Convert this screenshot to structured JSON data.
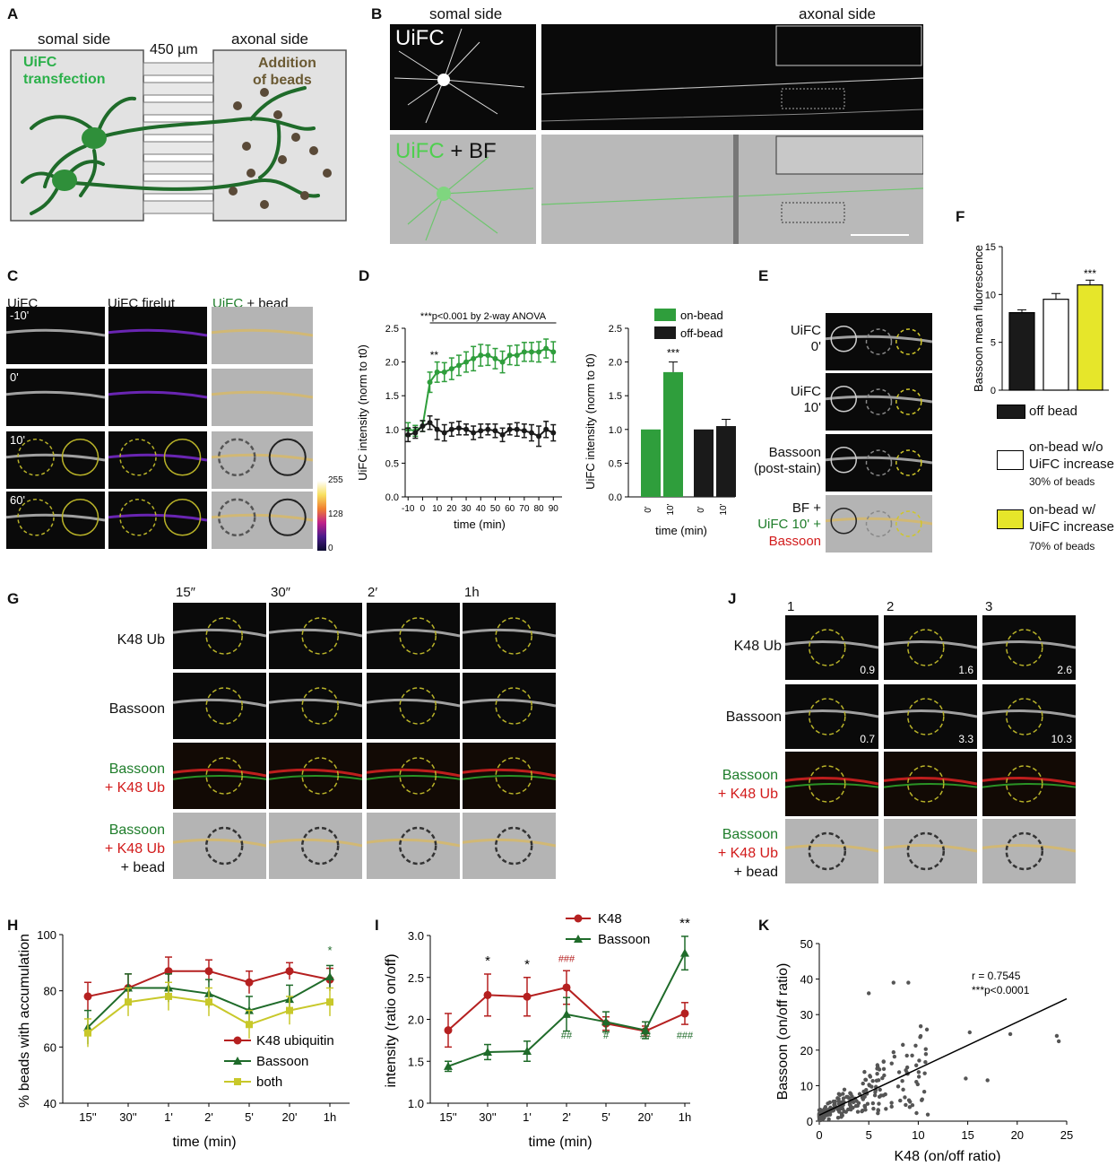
{
  "panels": {
    "A": "A",
    "B": "B",
    "C": "C",
    "D": "D",
    "E": "E",
    "F": "F",
    "G": "G",
    "H": "H",
    "I": "I",
    "J": "J",
    "K": "K"
  },
  "a": {
    "somal": "somal side",
    "axonal": "axonal side",
    "distance": "450 µm",
    "transfection1": "UiFC",
    "transfection2": "transfection",
    "beads1": "Addition",
    "beads2": "of beads"
  },
  "b": {
    "somal": "somal side",
    "axonal": "axonal side",
    "uifc": "UiFC",
    "uifc_bf_1": "UiFC",
    "uifc_bf_2": " + BF"
  },
  "c": {
    "col1": "UiFC",
    "col2": "UiFC firelut",
    "col3a": "UiFC",
    "col3b": " + bead",
    "t1": "-10'",
    "t2": "0'",
    "t3": "10'",
    "t4": "60'",
    "cb_max": "255",
    "cb_mid": "128",
    "cb_min": "0"
  },
  "e": {
    "r1a": "UiFC",
    "r1b": "0'",
    "r2a": "UiFC",
    "r2b": "10'",
    "r3a": "Bassoon",
    "r3b": "(post-stain)",
    "r4a": "BF +",
    "r4b": "UiFC 10' +",
    "r4c": "Bassoon"
  },
  "f_legend": {
    "off": "off bead",
    "on_wo_1": "on-bead w/o",
    "on_wo_2": "UiFC increase",
    "on_wo_pct": "30% of beads",
    "on_w_1": "on-bead w/",
    "on_w_2": "UiFC increase",
    "on_w_pct": "70% of beads"
  },
  "g": {
    "c1": "15″",
    "c2": "30″",
    "c3": "2′",
    "c4": "1h",
    "r1": "K48 Ub",
    "r2": "Bassoon",
    "r3a": "Bassoon",
    "r3b": "+ K48 Ub",
    "r4a": "Bassoon",
    "r4b": "+ K48 Ub",
    "r4c": "+ bead"
  },
  "j": {
    "c1": "1",
    "c2": "2",
    "c3": "3",
    "r1": "K48 Ub",
    "r2": "Bassoon",
    "r3a": "Bassoon",
    "r3b": "+ K48 Ub",
    "r4a": "Bassoon",
    "r4b": "+ K48 Ub",
    "r4c": "+ bead",
    "k1": "0.9",
    "k2": "1.6",
    "k3": "2.6",
    "b1": "0.7",
    "b2": "3.3",
    "b3": "10.3"
  },
  "colors": {
    "green": "#2f9e3c",
    "dark": "#1a1a1a",
    "yellow": "#e6e62a",
    "k48": "#b52020",
    "bassoon": "#1f6b2a",
    "both": "#c8c82a",
    "scatter": "#555555"
  },
  "chart_data": [
    {
      "id": "D-left",
      "type": "line",
      "ylabel": "UiFC intensity (norm to t0)",
      "xlabel": "time (min)",
      "annotation": "***p<0.001 by 2-way ANOVA",
      "sig": "**",
      "xticks": [
        -10,
        0,
        10,
        20,
        30,
        40,
        50,
        60,
        70,
        80,
        90
      ],
      "yticks": [
        0.0,
        0.5,
        1.0,
        1.5,
        2.0,
        2.5
      ],
      "ylim": [
        0,
        2.5
      ],
      "xlim": [
        -12,
        96
      ],
      "series": [
        {
          "name": "on-bead",
          "color": "#2f9e3c",
          "x": [
            -10,
            -5,
            0,
            5,
            10,
            15,
            20,
            25,
            30,
            35,
            40,
            45,
            50,
            55,
            60,
            65,
            70,
            75,
            80,
            85,
            90
          ],
          "y": [
            1.0,
            0.98,
            1.05,
            1.7,
            1.85,
            1.85,
            1.9,
            1.95,
            2.0,
            2.05,
            2.1,
            2.1,
            2.05,
            2.0,
            2.1,
            2.1,
            2.15,
            2.15,
            2.15,
            2.2,
            2.15
          ],
          "err": [
            0.1,
            0.08,
            0.08,
            0.15,
            0.15,
            0.14,
            0.16,
            0.15,
            0.15,
            0.18,
            0.16,
            0.15,
            0.15,
            0.16,
            0.14,
            0.15,
            0.14,
            0.14,
            0.15,
            0.14,
            0.15
          ]
        },
        {
          "name": "off-bead",
          "color": "#1a1a1a",
          "x": [
            -10,
            -5,
            0,
            5,
            10,
            15,
            20,
            25,
            30,
            35,
            40,
            45,
            50,
            55,
            60,
            65,
            70,
            75,
            80,
            85,
            90
          ],
          "y": [
            0.92,
            0.95,
            1.05,
            1.1,
            1.0,
            0.95,
            1.0,
            1.02,
            1.0,
            0.95,
            0.98,
            1.0,
            0.98,
            0.92,
            1.0,
            1.0,
            0.98,
            0.95,
            0.9,
            1.0,
            0.95
          ],
          "err": [
            0.1,
            0.08,
            0.08,
            0.1,
            0.15,
            0.12,
            0.1,
            0.1,
            0.08,
            0.1,
            0.1,
            0.08,
            0.1,
            0.1,
            0.08,
            0.1,
            0.1,
            0.12,
            0.15,
            0.12,
            0.12
          ]
        }
      ]
    },
    {
      "id": "D-right",
      "type": "bar",
      "ylabel": "UiFC intensity (norm to t0)",
      "xlabel": "time (min)",
      "categories": [
        "0'",
        "10'",
        "0'",
        "10'"
      ],
      "values": [
        1.0,
        1.85,
        1.0,
        1.05
      ],
      "err": [
        0,
        0.15,
        0,
        0.1
      ],
      "colors": [
        "#2f9e3c",
        "#2f9e3c",
        "#1a1a1a",
        "#1a1a1a"
      ],
      "ylim": [
        0,
        2.5
      ],
      "yticks": [
        0.0,
        0.5,
        1.0,
        1.5,
        2.0,
        2.5
      ],
      "sig": "***",
      "legend": [
        "on-bead",
        "off-bead"
      ]
    },
    {
      "id": "F",
      "type": "bar",
      "ylabel": "Bassoon mean fluorescence",
      "categories": [
        "off bead",
        "on-bead w/o UiFC increase",
        "on-bead w/ UiFC increase"
      ],
      "values": [
        8.1,
        9.5,
        11.0
      ],
      "err": [
        0.3,
        0.6,
        0.5
      ],
      "colors": [
        "#1a1a1a",
        "#ffffff",
        "#e6e62a"
      ],
      "ylim": [
        0,
        15
      ],
      "yticks": [
        0,
        5,
        10,
        15
      ],
      "sig": "***"
    },
    {
      "id": "H",
      "type": "line",
      "ylabel": "% beads with accumulation",
      "xlabel": "time (min)",
      "categories": [
        "15''",
        "30''",
        "1'",
        "2'",
        "5'",
        "20'",
        "1h"
      ],
      "ylim": [
        40,
        100
      ],
      "yticks": [
        40,
        60,
        80,
        100
      ],
      "sig": "*",
      "series": [
        {
          "name": "K48 ubiquitin",
          "color": "#b52020",
          "values": [
            78,
            81,
            87,
            87,
            83,
            87,
            84
          ],
          "err": [
            5,
            5,
            5,
            4,
            4,
            3,
            4
          ]
        },
        {
          "name": "Bassoon",
          "color": "#1f6b2a",
          "values": [
            67,
            81,
            81,
            79,
            73,
            77,
            85
          ],
          "err": [
            6,
            5,
            5,
            5,
            5,
            5,
            4
          ]
        },
        {
          "name": "both",
          "color": "#c8c82a",
          "values": [
            65,
            76,
            78,
            76,
            68,
            73,
            76
          ],
          "err": [
            5,
            5,
            5,
            5,
            5,
            5,
            5
          ]
        }
      ]
    },
    {
      "id": "I",
      "type": "line",
      "ylabel": "intensity (ratio on/off)",
      "xlabel": "time (min)",
      "categories": [
        "15''",
        "30''",
        "1'",
        "2'",
        "5'",
        "20'",
        "1h"
      ],
      "ylim": [
        1.0,
        3.0
      ],
      "yticks": [
        1.0,
        1.5,
        2.0,
        2.5,
        3.0
      ],
      "series": [
        {
          "name": "K48",
          "color": "#b52020",
          "values": [
            1.87,
            2.29,
            2.27,
            2.38,
            1.95,
            1.86,
            2.07
          ],
          "err": [
            0.2,
            0.25,
            0.23,
            0.2,
            0.08,
            0.06,
            0.13
          ]
        },
        {
          "name": "Bassoon",
          "color": "#1f6b2a",
          "values": [
            1.44,
            1.61,
            1.62,
            2.06,
            1.97,
            1.87,
            2.79
          ],
          "err": [
            0.06,
            0.09,
            0.12,
            0.2,
            0.12,
            0.1,
            0.2
          ]
        }
      ],
      "sig_top": [
        "",
        "*",
        "*",
        "###",
        "",
        "",
        "**"
      ],
      "sig_bottom": [
        "",
        "",
        "",
        "##",
        "#",
        "##",
        "###"
      ]
    },
    {
      "id": "K",
      "type": "scatter",
      "xlabel": "K48 (on/off ratio)",
      "ylabel": "Bassoon (on/off ratio)",
      "xlim": [
        0,
        25
      ],
      "ylim": [
        0,
        50
      ],
      "xticks": [
        0,
        5,
        10,
        15,
        20,
        25
      ],
      "yticks": [
        0,
        10,
        20,
        30,
        40,
        50
      ],
      "stat1": "r  = 0.7545",
      "stat2": "***p<0.0001",
      "fit": {
        "slope": 1.31,
        "intercept": 1.7
      }
    }
  ]
}
